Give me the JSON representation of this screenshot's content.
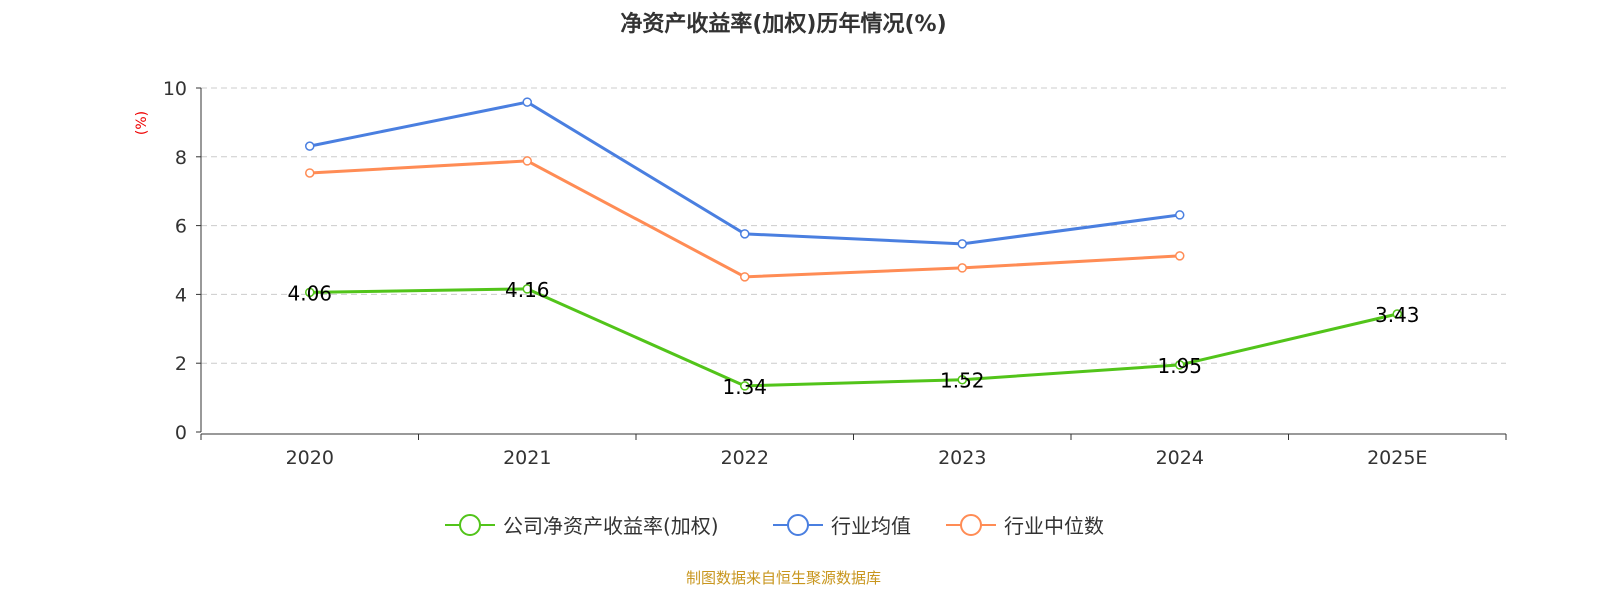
{
  "chart_data": {
    "type": "line",
    "title": "净资产收益率(加权)历年情况(%)",
    "ylabel": "(%)",
    "categories": [
      "2020",
      "2021",
      "2022",
      "2023",
      "2024",
      "2025E"
    ],
    "ylim": [
      0,
      10
    ],
    "yticks": [
      0,
      2,
      4,
      6,
      8,
      10
    ],
    "grid": true,
    "legend_position": "bottom",
    "series": [
      {
        "name": "公司净资产收益率(加权)",
        "color": "#52c41a",
        "values": [
          4.06,
          4.16,
          1.34,
          1.52,
          1.95,
          3.43
        ],
        "labels": [
          "4.06",
          "4.16",
          "1.34",
          "1.52",
          "1.95",
          "3.43"
        ]
      },
      {
        "name": "行业均值",
        "color": "#4a7fe0",
        "values": [
          8.31,
          9.59,
          5.76,
          5.47,
          6.31,
          null
        ]
      },
      {
        "name": "行业中位数",
        "color": "#ff8c55",
        "values": [
          7.53,
          7.88,
          4.51,
          4.77,
          5.12,
          null
        ]
      }
    ]
  },
  "source": "制图数据来自恒生聚源数据库"
}
